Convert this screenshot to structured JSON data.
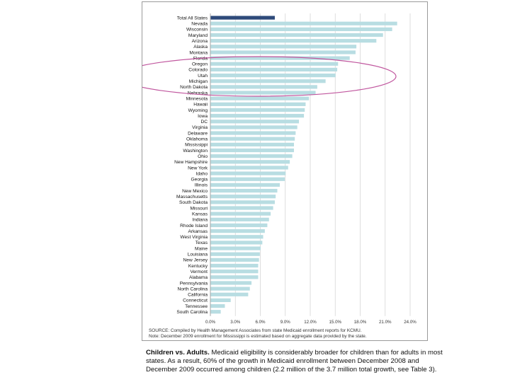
{
  "chart_data": {
    "type": "bar",
    "orientation": "horizontal",
    "title": "",
    "xlabel": "",
    "ylabel": "",
    "xlim": [
      0,
      24
    ],
    "x_ticks": [
      "0.0%",
      "3.0%",
      "6.0%",
      "9.0%",
      "12.0%",
      "15.0%",
      "18.0%",
      "21.0%",
      "24.0%"
    ],
    "x_tick_values": [
      0,
      3,
      6,
      9,
      12,
      15,
      18,
      21,
      24
    ],
    "grid": true,
    "highlight_color": "#2e4a7a",
    "bar_color": "#b8dde2",
    "annotation": "ellipse around Oregon through Nebraska",
    "categories": [
      "Total All States",
      "Nevada",
      "Wisconsin",
      "Maryland",
      "Arizona",
      "Alaska",
      "Montana",
      "Florida",
      "Oregon",
      "Colorado",
      "Utah",
      "Michigan",
      "North Dakota",
      "Nebraska",
      "Minnesota",
      "Hawaii",
      "Wyoming",
      "Iowa",
      "DC",
      "Virginia",
      "Delaware",
      "Oklahoma",
      "Mississippi",
      "Washington",
      "Ohio",
      "New Hampshire",
      "New York",
      "Idaho",
      "Georgia",
      "Illinois",
      "New Mexico",
      "Massachusetts",
      "South Dakota",
      "Missouri",
      "Kansas",
      "Indiana",
      "Rhode Island",
      "Arkansas",
      "West Virginia",
      "Texas",
      "Maine",
      "Louisiana",
      "New Jersey",
      "Kentucky",
      "Vermont",
      "Alabama",
      "Pennsylvania",
      "North Carolina",
      "California",
      "Connecticut",
      "Tennessee",
      "South Carolina"
    ],
    "values": [
      7.7,
      22.4,
      21.8,
      20.7,
      19.9,
      17.5,
      17.4,
      16.7,
      15.3,
      15.2,
      15.0,
      13.8,
      12.8,
      12.6,
      11.8,
      11.4,
      11.3,
      11.2,
      10.6,
      10.4,
      10.2,
      10.1,
      10.0,
      10.0,
      9.8,
      9.5,
      9.3,
      9.0,
      8.9,
      8.3,
      8.0,
      7.8,
      7.7,
      7.5,
      7.2,
      7.0,
      6.8,
      6.5,
      6.3,
      6.2,
      6.0,
      5.9,
      5.8,
      5.7,
      5.7,
      5.7,
      4.9,
      4.7,
      4.5,
      2.4,
      1.7,
      1.2
    ]
  },
  "source_lines": [
    "SOURCE: Compiled by Health Management Associates from state Medicaid enrollment reports for KCMU.",
    "Note: December 2009 enrollment for Mississippi is estimated based on aggregate data provided by the state."
  ],
  "body": {
    "lead": "Children vs. Adults.",
    "text": "Medicaid eligibility is considerably broader for children than for adults in most states. As a result, 60% of the growth in Medicaid enrollment between December 2008 and December 2009 occurred among children (2.2 million of the 3.7 million total growth, see Table 3)."
  }
}
